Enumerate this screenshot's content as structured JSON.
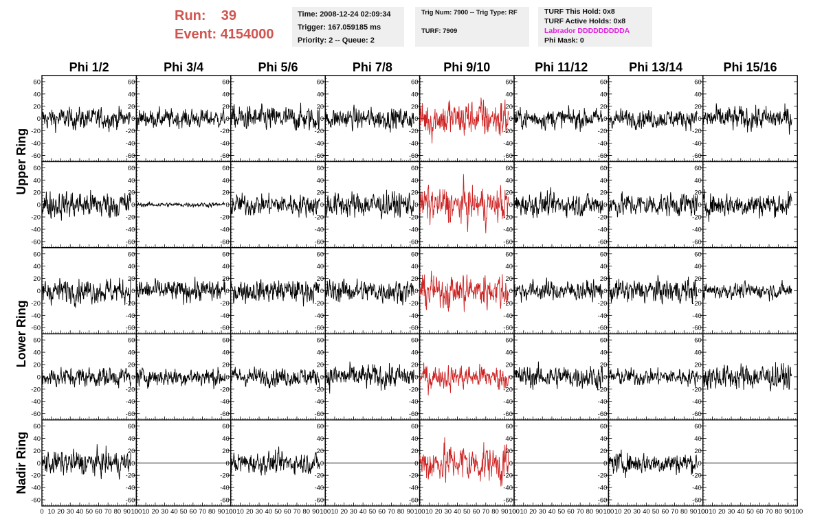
{
  "header": {
    "run_label": "Run:",
    "run_value": "39",
    "event_label": "Event:",
    "event_value": "4154000"
  },
  "info_time": {
    "time": "Time: 2008-12-24 02:09:34",
    "trigger": "Trigger: 167.059185 ms",
    "priority": "Priority: 2 -- Queue: 2"
  },
  "info_trig": {
    "trig": "Trig Num: 7900 -- Trig Type: RF",
    "turf": "TURF: 7909"
  },
  "info_turf": {
    "this_hold": "TURF This Hold: 0x8",
    "active_holds": "TURF Active Holds: 0x8",
    "labrador": "Labrador DDDDDDDDDA",
    "phi_mask": "Phi Mask: 0"
  },
  "colors": {
    "trace": "#000000",
    "highlight": "#cc2222",
    "run_text": "#d05550",
    "labrador": "#e01ee0"
  },
  "chart_data": {
    "type": "line",
    "columns": [
      "Phi 1/2",
      "Phi 3/4",
      "Phi 5/6",
      "Phi 7/8",
      "Phi 9/10",
      "Phi 11/12",
      "Phi 13/14",
      "Phi 15/16"
    ],
    "ring_labels": [
      {
        "label": "Upper Ring",
        "rows": [
          0,
          1
        ]
      },
      {
        "label": "Lower Ring",
        "rows": [
          2,
          3
        ]
      },
      {
        "label": "Nadir Ring",
        "rows": [
          4,
          4
        ]
      }
    ],
    "ylim": [
      -70,
      70
    ],
    "yticks": [
      -60,
      -40,
      -20,
      0,
      20,
      40,
      60
    ],
    "xlim": [
      0,
      100
    ],
    "xticks": [
      0,
      10,
      20,
      30,
      40,
      50,
      60,
      70,
      80,
      90,
      100
    ],
    "highlight_column": 4,
    "samples": 260,
    "trace_span": [
      0,
      94
    ],
    "amplitude": [
      [
        14,
        12,
        16,
        14,
        22,
        13,
        12,
        16
      ],
      [
        18,
        3,
        14,
        17,
        20,
        15,
        15,
        16
      ],
      [
        16,
        14,
        15,
        15,
        19,
        13,
        16,
        10
      ],
      [
        13,
        12,
        12,
        16,
        14,
        15,
        11,
        17
      ],
      [
        16,
        0,
        14,
        0,
        22,
        0,
        14,
        0
      ]
    ]
  }
}
